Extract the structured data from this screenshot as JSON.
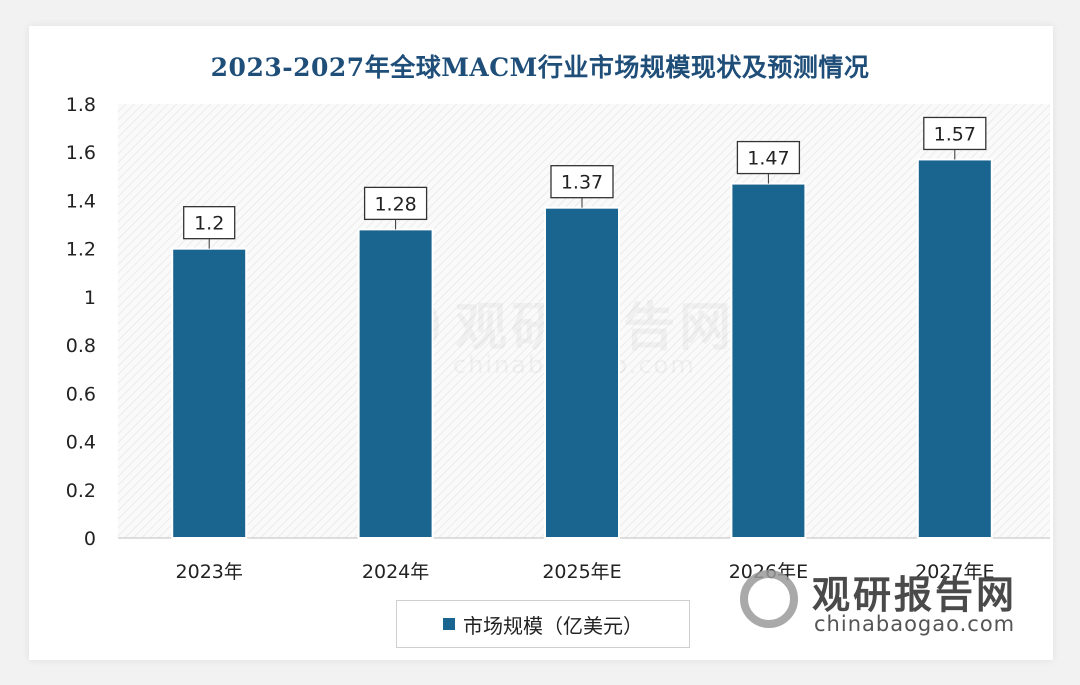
{
  "title": "2023-2027年全球MACM行业市场规模现状及预测情况",
  "chart_data": {
    "type": "bar",
    "title": "2023-2027年全球MACM行业市场规模现状及预测情况",
    "categories": [
      "2023年",
      "2024年",
      "2025年E",
      "2026年E",
      "2027年E"
    ],
    "series": [
      {
        "name": "市场规模（亿美元）",
        "values": [
          1.2,
          1.28,
          1.37,
          1.47,
          1.57
        ]
      }
    ],
    "data_labels": [
      "1.2",
      "1.28",
      "1.37",
      "1.47",
      "1.57"
    ],
    "y_ticks": [
      "0",
      "0.2",
      "0.4",
      "0.6",
      "0.8",
      "1",
      "1.2",
      "1.4",
      "1.6",
      "1.8"
    ],
    "ylim": [
      0,
      1.8
    ],
    "xlabel": "",
    "ylabel": "",
    "grid": false,
    "legend_position": "bottom",
    "bar_color": "#1a6490"
  },
  "legend": {
    "label": "市场规模（亿美元）"
  },
  "watermark": {
    "brand": "观研报告网",
    "url": "chinabaogao.com"
  },
  "colors": {
    "title": "#1f4e79",
    "bar": "#1a6490"
  }
}
